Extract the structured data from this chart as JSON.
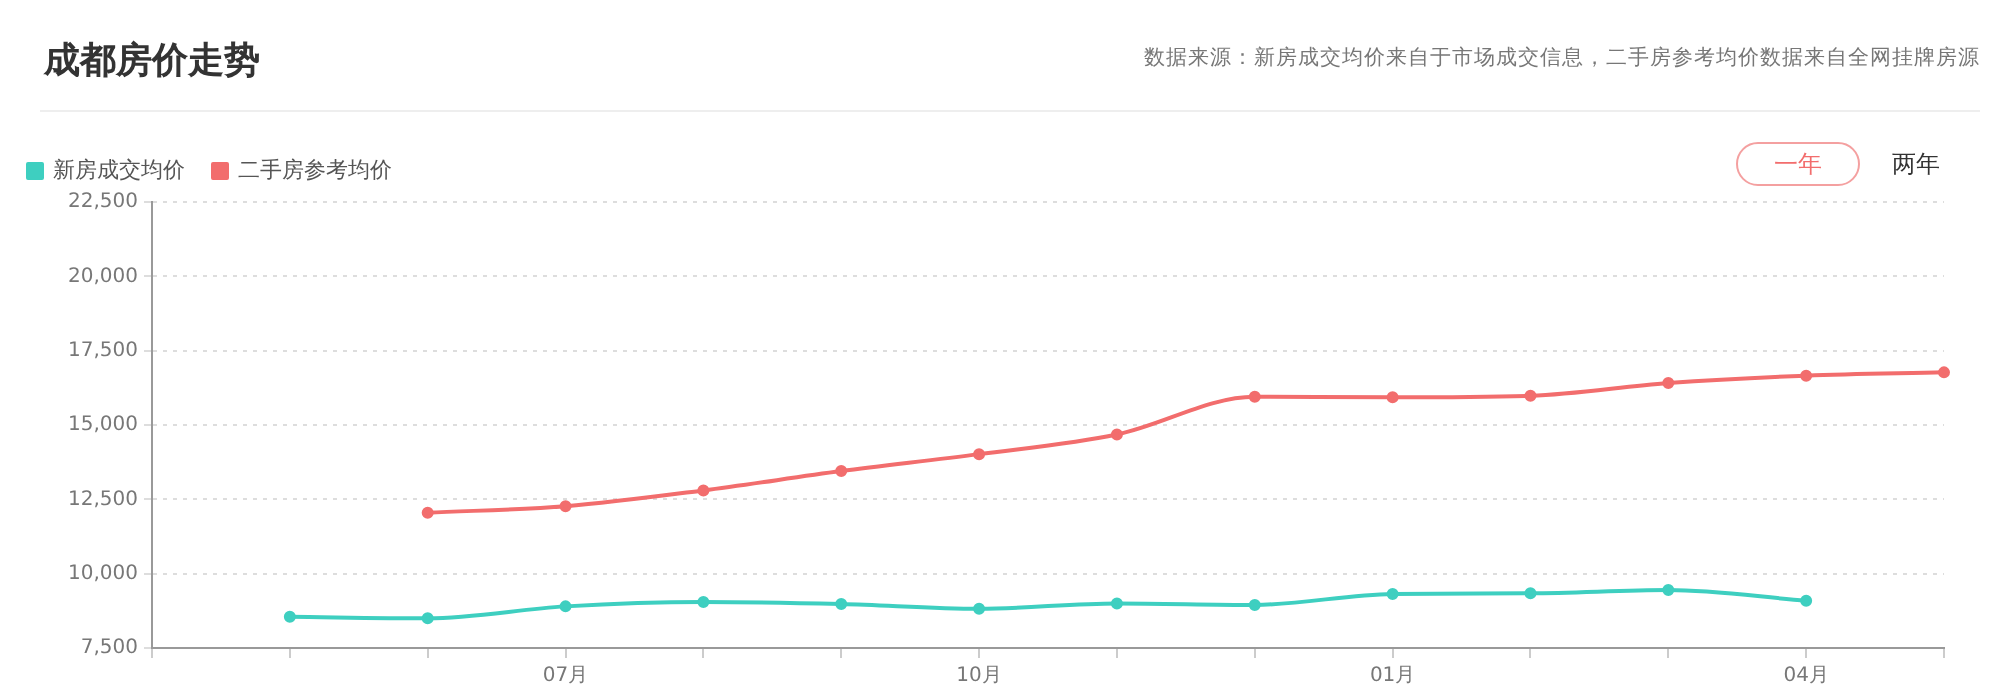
{
  "chart_data": {
    "type": "line",
    "title": "成都房价走势",
    "annotations": [
      "数据来源：新房成交均价来自于市场成交信息，二手房参考均价数据来自全网挂牌房源",
      "一年",
      "两年"
    ],
    "categories": [
      null,
      null,
      null,
      "07月",
      null,
      null,
      "10月",
      null,
      null,
      "01月",
      null,
      null,
      "04月",
      null
    ],
    "series": [
      {
        "name": "新房成交均价",
        "color": "#3ecfc0",
        "values": [
          null,
          8550,
          8500,
          8900,
          9050,
          8980,
          8820,
          9000,
          8950,
          9320,
          9340,
          9450,
          9090,
          null
        ]
      },
      {
        "name": "二手房参考均价",
        "color": "#f26d6d",
        "values": [
          null,
          null,
          12050,
          12270,
          12800,
          13450,
          14020,
          14680,
          15950,
          15930,
          15980,
          16410,
          16660,
          16770
        ]
      }
    ],
    "ylim": [
      7500,
      22500
    ],
    "yticks": [
      {
        "value": 7500,
        "label": "7,500"
      },
      {
        "value": 10000,
        "label": "10,000"
      },
      {
        "value": 12500,
        "label": "12,500"
      },
      {
        "value": 15000,
        "label": "15,000"
      },
      {
        "value": 17500,
        "label": "17,500"
      },
      {
        "value": 20000,
        "label": "20,000"
      },
      {
        "value": 22500,
        "label": "22,500"
      }
    ],
    "grid": "y",
    "legend": "top left",
    "marker": "circle",
    "line_style": "solid"
  }
}
